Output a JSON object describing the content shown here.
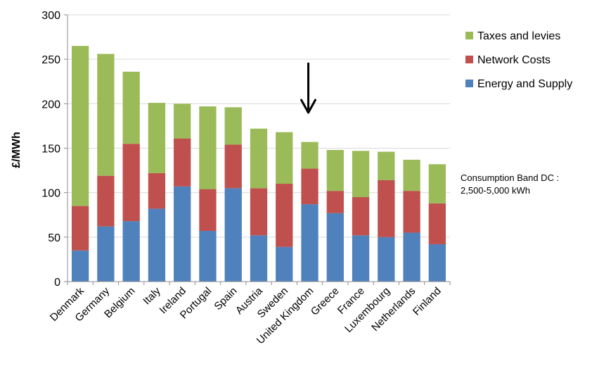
{
  "chart_data": {
    "type": "bar",
    "stacked": true,
    "categories": [
      "Denmark",
      "Germany",
      "Belgium",
      "Italy",
      "Ireland",
      "Portugal",
      "Spain",
      "Austria",
      "Sweden",
      "United Kingdom",
      "Greece",
      "France",
      "Luxembourg",
      "Netherlands",
      "Finland"
    ],
    "series": [
      {
        "name": "Energy and Supply",
        "color": "#4f81bd",
        "values": [
          35,
          62,
          68,
          82,
          107,
          57,
          105,
          52,
          39,
          87,
          77,
          52,
          50,
          55,
          42
        ]
      },
      {
        "name": "Network Costs",
        "color": "#c0504d",
        "values": [
          50,
          57,
          87,
          40,
          54,
          47,
          49,
          53,
          71,
          40,
          25,
          43,
          64,
          47,
          46
        ]
      },
      {
        "name": "Taxes and levies",
        "color": "#9bbb59",
        "values": [
          180,
          137,
          81,
          79,
          39,
          93,
          42,
          67,
          58,
          30,
          46,
          52,
          32,
          35,
          44
        ]
      }
    ],
    "ylabel": "£/MWh",
    "ylim": [
      0,
      300
    ],
    "yticks": [
      0,
      50,
      100,
      150,
      200,
      250,
      300
    ],
    "grid": true,
    "legend": "right",
    "annotation": {
      "line1": "Consumption Band DC :",
      "line2": "2,500-5,000 kWh",
      "arrow_category": "United Kingdom"
    }
  }
}
